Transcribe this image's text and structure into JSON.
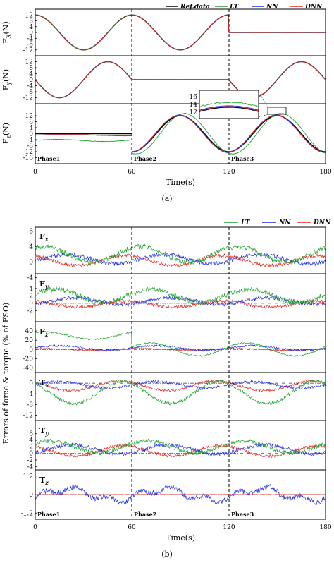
{
  "figure": {
    "legend": [
      "Ref.data",
      "LT",
      "NN",
      "DNN"
    ],
    "phases": [
      "Phase1",
      "Phase2",
      "Phase3"
    ],
    "x_ticks": [
      "0",
      "60",
      "120",
      "180"
    ],
    "x_label": "Time(s)",
    "caption_a": "(a)",
    "caption_b": "(b)",
    "y_label_b": "Errors of force & torque (% of FSO)"
  },
  "colors": {
    "ref": "#000000",
    "lt": "#1aa32a",
    "nn": "#1f2de0",
    "dnn": "#e0241a"
  },
  "chart_data": [
    {
      "type": "line",
      "panel": "a",
      "x_range": [
        0,
        180
      ],
      "x_ticks": [
        0,
        60,
        120,
        180
      ],
      "xlabel": "Time(s)",
      "series_names": [
        "Ref.data",
        "LT",
        "NN",
        "DNN"
      ],
      "subplots": [
        {
          "id": "Fx",
          "ylabel_main": "F",
          "ylabel_sub": "X",
          "ylabel_unit": "(N)",
          "ylim": [
            -16,
            16
          ],
          "y_ticks": [
            12,
            8,
            4,
            0,
            -4,
            -8,
            -12
          ],
          "segments": [
            {
              "x": [
                0,
                15,
                30,
                45,
                60
              ],
              "ref": [
                12,
                0,
                -12,
                0,
                12
              ]
            },
            {
              "x": [
                60,
                75,
                90,
                105,
                120
              ],
              "ref": [
                12,
                0,
                -12,
                0,
                12
              ]
            },
            {
              "x": [
                120,
                150,
                180
              ],
              "ref": [
                0,
                0,
                0
              ]
            }
          ]
        },
        {
          "id": "Fy",
          "ylabel_main": "F",
          "ylabel_sub": "y",
          "ylabel_unit": "(N)",
          "ylim": [
            -16,
            16
          ],
          "y_ticks": [
            12,
            8,
            4,
            0,
            -4,
            -8,
            -12
          ],
          "segments": [
            {
              "x": [
                0,
                15,
                30,
                45,
                60
              ],
              "ref": [
                0,
                -12,
                0,
                12,
                0
              ]
            },
            {
              "x": [
                60,
                90,
                120
              ],
              "ref": [
                0,
                0,
                0
              ]
            },
            {
              "x": [
                120,
                135,
                150,
                165,
                180
              ],
              "ref": [
                0,
                -12,
                0,
                12,
                0
              ]
            }
          ]
        },
        {
          "id": "Fz",
          "ylabel_main": "F",
          "ylabel_sub": "z",
          "ylabel_unit": "(N)",
          "ylim": [
            -20,
            20
          ],
          "y_ticks": [
            12,
            8,
            4,
            0,
            -4,
            -8,
            -12,
            -16
          ],
          "segments": [
            {
              "x": [
                0,
                30,
                60
              ],
              "ref": [
                0,
                0,
                0
              ],
              "lt": [
                -5,
                -4,
                -4
              ]
            },
            {
              "x": [
                60,
                75,
                90,
                105,
                120
              ],
              "ref": [
                -12,
                0,
                12,
                0,
                -12
              ]
            },
            {
              "x": [
                120,
                135,
                150,
                165,
                180
              ],
              "ref": [
                -12,
                0,
                12,
                0,
                -12
              ]
            }
          ],
          "inset_yticks": [
            16,
            14,
            12
          ]
        }
      ]
    },
    {
      "type": "line",
      "panel": "b",
      "x_range": [
        0,
        180
      ],
      "x_ticks": [
        0,
        60,
        120,
        180
      ],
      "xlabel": "Time(s)",
      "ylabel": "Errors of force & torque (% of FSO)",
      "series_names": [
        "LT",
        "NN",
        "DNN"
      ],
      "subplots": [
        {
          "id": "Fx",
          "label_main": "F",
          "label_sub": "x",
          "ylim": [
            -3,
            9
          ],
          "y_ticks": [
            8,
            4,
            0,
            -4
          ]
        },
        {
          "id": "Fy",
          "label_main": "F",
          "label_sub": "y",
          "ylim": [
            -5,
            8
          ],
          "y_ticks": [
            4,
            2,
            0,
            -2
          ]
        },
        {
          "id": "Fz",
          "label_main": "F",
          "label_sub": "z",
          "ylim": [
            -50,
            60
          ],
          "y_ticks": [
            40,
            20,
            0,
            -20,
            -40
          ]
        },
        {
          "id": "Tx",
          "label_main": "T",
          "label_sub": "x",
          "ylim": [
            -14,
            4
          ],
          "y_ticks": [
            0,
            -4,
            -8,
            -12
          ]
        },
        {
          "id": "Ty",
          "label_main": "T",
          "label_sub": "y",
          "ylim": [
            -5,
            10
          ],
          "y_ticks": [
            6,
            4,
            2,
            0,
            -2,
            -4
          ]
        },
        {
          "id": "Tz",
          "label_main": "T",
          "label_sub": "z",
          "ylim": [
            -1.6,
            1.6
          ],
          "y_ticks": [
            1.2,
            0.0,
            -1.2
          ]
        }
      ]
    }
  ]
}
